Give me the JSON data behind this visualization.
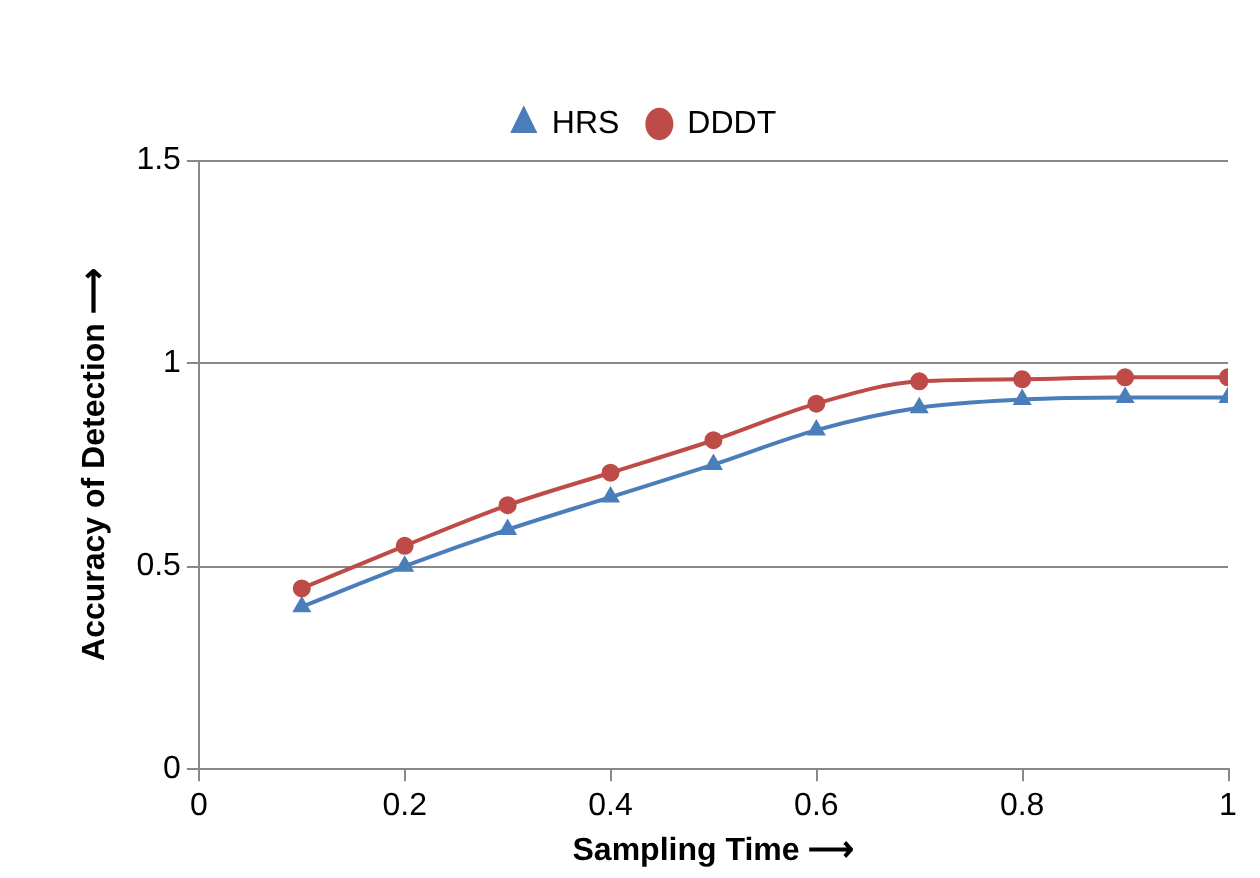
{
  "chart_data": {
    "type": "line",
    "xlabel": "Sampling Time ⟶",
    "ylabel": "Accuracy of Detection ⟶",
    "x": [
      0.1,
      0.2,
      0.3,
      0.4,
      0.5,
      0.6,
      0.7,
      0.8,
      0.9,
      1
    ],
    "series": [
      {
        "name": "HRS",
        "color": "#4a7ebb",
        "marker": "triangle",
        "values": [
          0.4,
          0.5,
          0.59,
          0.67,
          0.75,
          0.835,
          0.89,
          0.91,
          0.915,
          0.915
        ]
      },
      {
        "name": "DDDT",
        "color": "#be4b48",
        "marker": "circle",
        "values": [
          0.445,
          0.55,
          0.65,
          0.73,
          0.81,
          0.9,
          0.955,
          0.96,
          0.965,
          0.965
        ]
      }
    ],
    "xlim": [
      0,
      1
    ],
    "xticks": [
      0,
      0.2,
      0.4,
      0.6,
      0.8,
      1
    ],
    "ylim": [
      0,
      1.5
    ],
    "yticks": [
      0,
      0.5,
      1,
      1.5
    ],
    "grid": "y",
    "legend": "top"
  }
}
